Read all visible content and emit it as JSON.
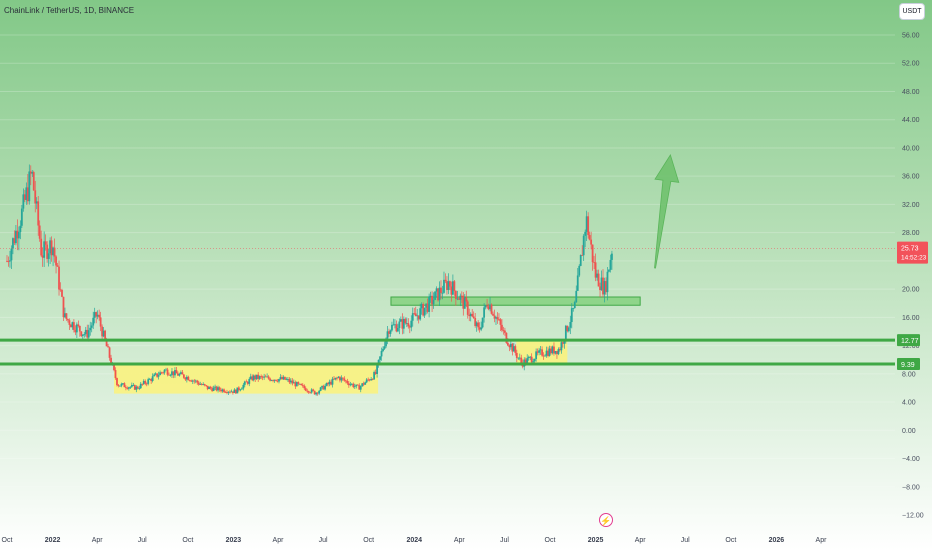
{
  "header": {
    "title": "ChainLink / TetherUS, 1D, BINANCE",
    "unit_button": "USDT"
  },
  "colors": {
    "up_candle": "#26a69a",
    "down_candle": "#ef5350",
    "support_line": "#3fa845",
    "zone_fill": "#fbf27a",
    "arrow": "#6cc06a",
    "price_label": "#f2525a",
    "background_top": "#82c887",
    "background_bottom": "#ffffff"
  },
  "chart_data": {
    "type": "candlestick",
    "symbol": "ChainLink / TetherUS",
    "interval": "1D",
    "exchange": "BINANCE",
    "x_axis_ticks": [
      "Oct",
      "2022",
      "Apr",
      "Jul",
      "Oct",
      "2023",
      "Apr",
      "Jul",
      "Oct",
      "2024",
      "Apr",
      "Jul",
      "Oct",
      "2025",
      "Apr",
      "Jul",
      "Oct",
      "2026",
      "Apr"
    ],
    "y_axis_ticks": [
      "56.00",
      "52.00",
      "48.00",
      "44.00",
      "40.00",
      "36.00",
      "32.00",
      "28.00",
      "24.00",
      "20.00",
      "16.00",
      "12.00",
      "8.00",
      "4.00",
      "0.00",
      "−4.00",
      "−8.00",
      "−12.00"
    ],
    "ylim": [
      -12,
      58
    ],
    "price_path": [
      {
        "date": "2021-10-01",
        "price": 24.0
      },
      {
        "date": "2021-11-01",
        "price": 31.0
      },
      {
        "date": "2021-11-20",
        "price": 36.5
      },
      {
        "date": "2021-12-10",
        "price": 25.0
      },
      {
        "date": "2022-01-01",
        "price": 26.5
      },
      {
        "date": "2022-01-25",
        "price": 16.0
      },
      {
        "date": "2022-03-10",
        "price": 13.5
      },
      {
        "date": "2022-04-01",
        "price": 16.5
      },
      {
        "date": "2022-05-12",
        "price": 6.5
      },
      {
        "date": "2022-06-20",
        "price": 6.0
      },
      {
        "date": "2022-08-15",
        "price": 8.5
      },
      {
        "date": "2022-10-01",
        "price": 7.5
      },
      {
        "date": "2022-11-10",
        "price": 6.0
      },
      {
        "date": "2023-01-05",
        "price": 5.5
      },
      {
        "date": "2023-02-10",
        "price": 7.5
      },
      {
        "date": "2023-04-15",
        "price": 7.2
      },
      {
        "date": "2023-06-15",
        "price": 5.3
      },
      {
        "date": "2023-08-01",
        "price": 7.5
      },
      {
        "date": "2023-09-10",
        "price": 6.0
      },
      {
        "date": "2023-10-15",
        "price": 8.0
      },
      {
        "date": "2023-11-10",
        "price": 14.5
      },
      {
        "date": "2023-12-25",
        "price": 15.5
      },
      {
        "date": "2024-02-01",
        "price": 18.0
      },
      {
        "date": "2024-03-10",
        "price": 21.0
      },
      {
        "date": "2024-04-15",
        "price": 17.5
      },
      {
        "date": "2024-05-10",
        "price": 14.0
      },
      {
        "date": "2024-05-28",
        "price": 18.5
      },
      {
        "date": "2024-07-01",
        "price": 13.5
      },
      {
        "date": "2024-08-05",
        "price": 9.5
      },
      {
        "date": "2024-09-15",
        "price": 11.0
      },
      {
        "date": "2024-10-20",
        "price": 11.5
      },
      {
        "date": "2024-11-20",
        "price": 17.5
      },
      {
        "date": "2024-12-13",
        "price": 30.0
      },
      {
        "date": "2025-01-01",
        "price": 22.0
      },
      {
        "date": "2025-01-20",
        "price": 20.0
      },
      {
        "date": "2025-02-03",
        "price": 25.73
      }
    ],
    "current_price": {
      "value": "25.73",
      "countdown": "14:52:23"
    },
    "horizontal_lines": [
      {
        "label": "12.77",
        "value": 12.77
      },
      {
        "label": "9.39",
        "value": 9.39
      }
    ],
    "resistance_zone": {
      "start": "2023-11-15",
      "end": "2025-04-01",
      "low": 18.0,
      "high": 18.6
    },
    "consolidation_zones": [
      {
        "start": "2022-05-05",
        "end": "2023-10-20",
        "low": 5.2,
        "high": 9.6
      },
      {
        "start": "2024-07-25",
        "end": "2024-11-05",
        "low": 9.2,
        "high": 12.8
      }
    ],
    "projection_arrow": {
      "from": {
        "date": "2025-05-01",
        "price": 23.0
      },
      "to": {
        "date": "2025-06-01",
        "price": 39.0
      }
    }
  }
}
